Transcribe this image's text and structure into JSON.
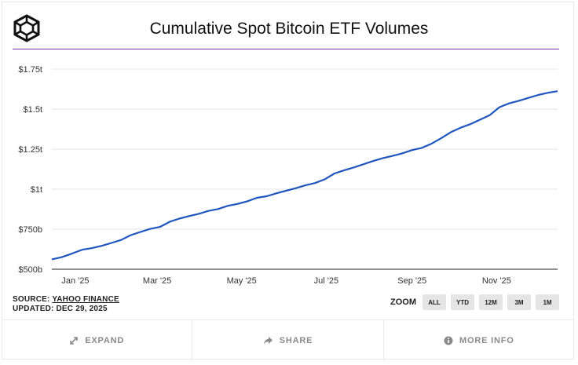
{
  "header": {
    "logo_icon": "cube-logo-icon",
    "title": "Cumulative Spot Bitcoin ETF Volumes",
    "accent_color": "#7b2fa3"
  },
  "chart_data": {
    "type": "line",
    "title": "Cumulative Spot Bitcoin ETF Volumes",
    "xlabel": "",
    "ylabel": "",
    "x_tick_labels": [
      "Jan '25",
      "Mar '25",
      "May '25",
      "Jul '25",
      "Sep '25",
      "Nov '25"
    ],
    "y_tick_labels": [
      "$500b",
      "$750b",
      "$1t",
      "$1.25t",
      "$1.5t",
      "$1.75t"
    ],
    "y_ticks": [
      500,
      750,
      1000,
      1250,
      1500,
      1750
    ],
    "ylim": [
      500,
      1750
    ],
    "y_unit": "billions USD",
    "xlim": [
      "2024-12-29",
      "2025-12-29"
    ],
    "grid": true,
    "line_color": "#1f56c0",
    "series": [
      {
        "name": "",
        "points": [
          [
            "2024-12-29",
            562
          ],
          [
            "2025-01-05",
            575
          ],
          [
            "2025-01-12",
            596
          ],
          [
            "2025-01-20",
            622
          ],
          [
            "2025-01-27",
            632
          ],
          [
            "2025-02-03",
            646
          ],
          [
            "2025-02-10",
            664
          ],
          [
            "2025-02-17",
            683
          ],
          [
            "2025-02-24",
            713
          ],
          [
            "2025-03-03",
            733
          ],
          [
            "2025-03-10",
            752
          ],
          [
            "2025-03-17",
            764
          ],
          [
            "2025-03-24",
            796
          ],
          [
            "2025-03-31",
            816
          ],
          [
            "2025-04-07",
            832
          ],
          [
            "2025-04-14",
            846
          ],
          [
            "2025-04-21",
            864
          ],
          [
            "2025-04-28",
            876
          ],
          [
            "2025-05-05",
            896
          ],
          [
            "2025-05-12",
            908
          ],
          [
            "2025-05-19",
            924
          ],
          [
            "2025-05-26",
            946
          ],
          [
            "2025-06-02",
            956
          ],
          [
            "2025-06-09",
            974
          ],
          [
            "2025-06-16",
            990
          ],
          [
            "2025-06-23",
            1006
          ],
          [
            "2025-06-30",
            1024
          ],
          [
            "2025-07-07",
            1038
          ],
          [
            "2025-07-14",
            1062
          ],
          [
            "2025-07-21",
            1098
          ],
          [
            "2025-07-28",
            1118
          ],
          [
            "2025-08-04",
            1136
          ],
          [
            "2025-08-11",
            1156
          ],
          [
            "2025-08-18",
            1176
          ],
          [
            "2025-08-25",
            1194
          ],
          [
            "2025-09-01",
            1208
          ],
          [
            "2025-09-08",
            1224
          ],
          [
            "2025-09-15",
            1244
          ],
          [
            "2025-09-22",
            1258
          ],
          [
            "2025-09-29",
            1284
          ],
          [
            "2025-10-06",
            1318
          ],
          [
            "2025-10-13",
            1356
          ],
          [
            "2025-10-20",
            1384
          ],
          [
            "2025-10-27",
            1406
          ],
          [
            "2025-11-03",
            1434
          ],
          [
            "2025-11-10",
            1462
          ],
          [
            "2025-11-17",
            1512
          ],
          [
            "2025-11-24",
            1536
          ],
          [
            "2025-12-01",
            1552
          ],
          [
            "2025-12-08",
            1570
          ],
          [
            "2025-12-15",
            1588
          ],
          [
            "2025-12-22",
            1602
          ],
          [
            "2025-12-29",
            1612
          ]
        ]
      }
    ]
  },
  "meta": {
    "source_prefix": "SOURCE: ",
    "source_name": "YAHOO FINANCE",
    "updated": "UPDATED: DEC 29, 2025"
  },
  "zoom": {
    "label": "ZOOM",
    "options": [
      "ALL",
      "YTD",
      "12M",
      "3M",
      "1M"
    ]
  },
  "footer": {
    "expand": {
      "label": "EXPAND",
      "icon": "expand-arrows-icon"
    },
    "share": {
      "label": "SHARE",
      "icon": "share-arrow-icon"
    },
    "more_info": {
      "label": "MORE INFO",
      "icon": "info-circle-icon"
    }
  }
}
